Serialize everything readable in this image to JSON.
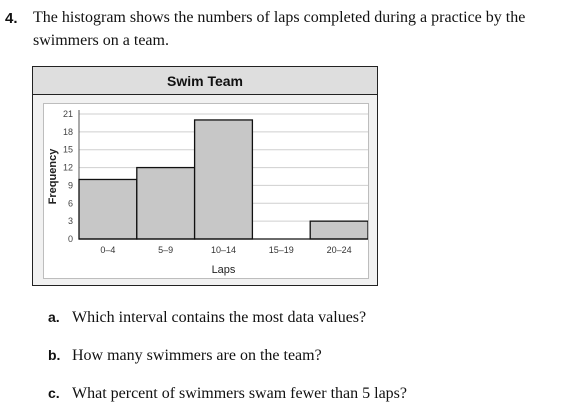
{
  "problem": {
    "number": "4.",
    "prompt_line1": "The histogram shows the numbers of laps completed during a practice by the",
    "prompt_line2": "swimmers on a team."
  },
  "chart_data": {
    "type": "bar",
    "title": "Swim Team",
    "xlabel": "Laps",
    "ylabel": "Frequency",
    "categories": [
      "0–4",
      "5–9",
      "10–14",
      "15–19",
      "20–24"
    ],
    "values": [
      10,
      12,
      20,
      0,
      3
    ],
    "yticks": [
      0,
      3,
      6,
      9,
      12,
      15,
      18,
      21
    ],
    "ylim": [
      0,
      21
    ],
    "grid": true,
    "bar_color": "#c7c7c7",
    "grid_color": "#cfcfcf"
  },
  "questions": [
    {
      "letter": "a.",
      "text": "Which interval contains the most data values?"
    },
    {
      "letter": "b.",
      "text": "How many swimmers are on the team?"
    },
    {
      "letter": "c.",
      "text": "What percent of swimmers swam fewer than 5 laps?"
    }
  ]
}
